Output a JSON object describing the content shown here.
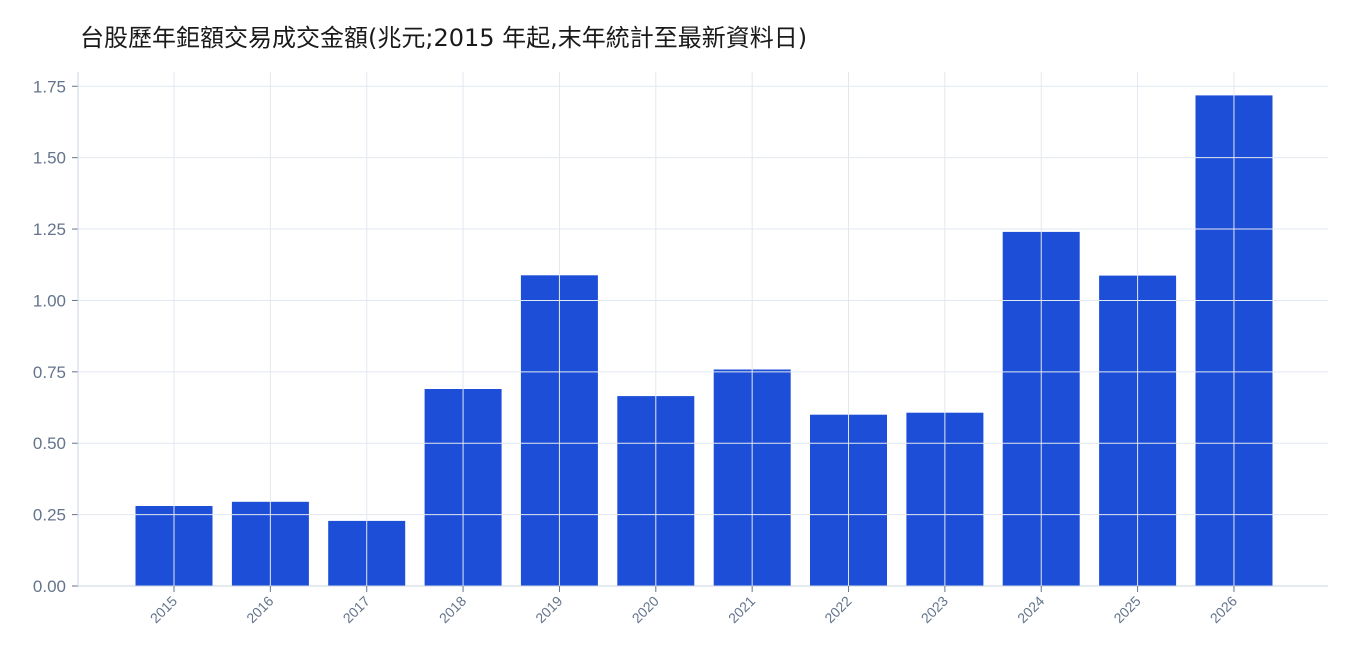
{
  "chart_data": {
    "type": "bar",
    "title": "台股歷年鉅額交易成交金額(兆元;2015 年起,末年統計至最新資料日)",
    "xlabel": "",
    "ylabel": "",
    "categories": [
      "2015",
      "2016",
      "2017",
      "2018",
      "2019",
      "2020",
      "2021",
      "2022",
      "2023",
      "2024",
      "2025",
      "2026"
    ],
    "values": [
      0.28,
      0.295,
      0.228,
      0.69,
      1.088,
      0.665,
      0.758,
      0.6,
      0.607,
      1.24,
      1.087,
      1.718
    ],
    "ylim": [
      0,
      1.8
    ],
    "yticks": [
      "0.00",
      "0.25",
      "0.50",
      "0.75",
      "1.00",
      "1.25",
      "1.50",
      "1.75"
    ],
    "grid": true,
    "bar_color": "#1d4ed8",
    "grid_color": "#e2e8f0",
    "tick_color": "#64748b"
  }
}
